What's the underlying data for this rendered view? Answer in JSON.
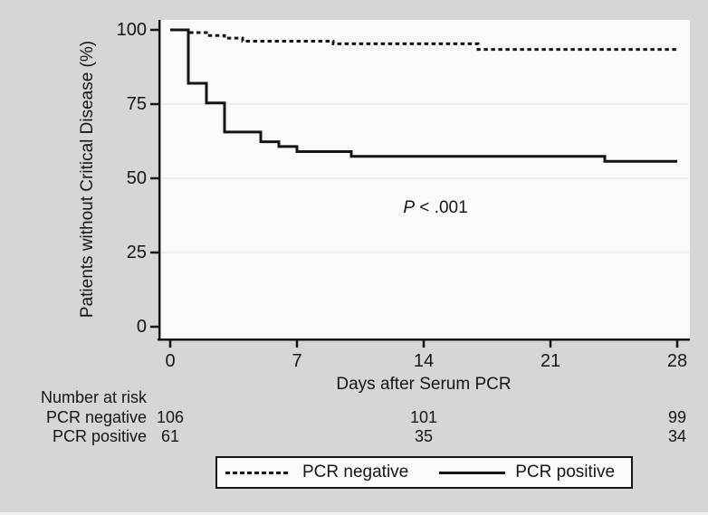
{
  "figure": {
    "background": "#d6d6d6",
    "plot_background": "#fbfafa",
    "line_color": "#151515",
    "grid_color": "#efecec"
  },
  "chart_data": {
    "type": "line",
    "subtype": "kaplan-meier-step",
    "title": "",
    "xlabel": "Days after Serum PCR",
    "ylabel": "Patients without Critical Disease (%)",
    "xlim": [
      0,
      28
    ],
    "ylim": [
      0,
      100
    ],
    "xticks": [
      0,
      7,
      14,
      21,
      28
    ],
    "yticks": [
      100,
      75,
      50,
      25,
      0
    ],
    "xtick_labels": [
      "0",
      "7",
      "14",
      "21",
      "28"
    ],
    "ytick_labels": [
      "100",
      "75",
      "50",
      "25",
      "0"
    ],
    "grid": "horizontal gridlines at 25, 50, 75",
    "legend_position": "bottom-center boxed",
    "series": [
      {
        "name": "PCR negative",
        "style": "dashed",
        "points": [
          [
            0,
            100
          ],
          [
            1,
            99.1
          ],
          [
            2,
            98.1
          ],
          [
            3,
            97.2
          ],
          [
            4,
            96.2
          ],
          [
            9,
            95.3
          ],
          [
            17,
            93.4
          ],
          [
            28,
            93.4
          ]
        ]
      },
      {
        "name": "PCR positive",
        "style": "solid",
        "points": [
          [
            0,
            100
          ],
          [
            1,
            82.0
          ],
          [
            2,
            75.4
          ],
          [
            3,
            65.6
          ],
          [
            5,
            62.3
          ],
          [
            6,
            60.7
          ],
          [
            7,
            59.0
          ],
          [
            10,
            57.4
          ],
          [
            24,
            55.7
          ],
          [
            28,
            55.7
          ]
        ]
      }
    ],
    "annotation": {
      "text": "P < .001",
      "x_day": 14.3,
      "y_pct": 40
    }
  },
  "annotation": {
    "p_italic": "P",
    "p_rest": " < .001"
  },
  "risk_table": {
    "title": "Number at risk",
    "columns_days": [
      0,
      14,
      28
    ],
    "rows": [
      {
        "label": "PCR negative",
        "values": [
          "106",
          "101",
          "99"
        ]
      },
      {
        "label": "PCR positive",
        "values": [
          "61",
          "35",
          "34"
        ]
      }
    ]
  },
  "legend": {
    "items": [
      {
        "label": "PCR negative",
        "style": "dashed"
      },
      {
        "label": "PCR positive",
        "style": "solid"
      }
    ]
  }
}
